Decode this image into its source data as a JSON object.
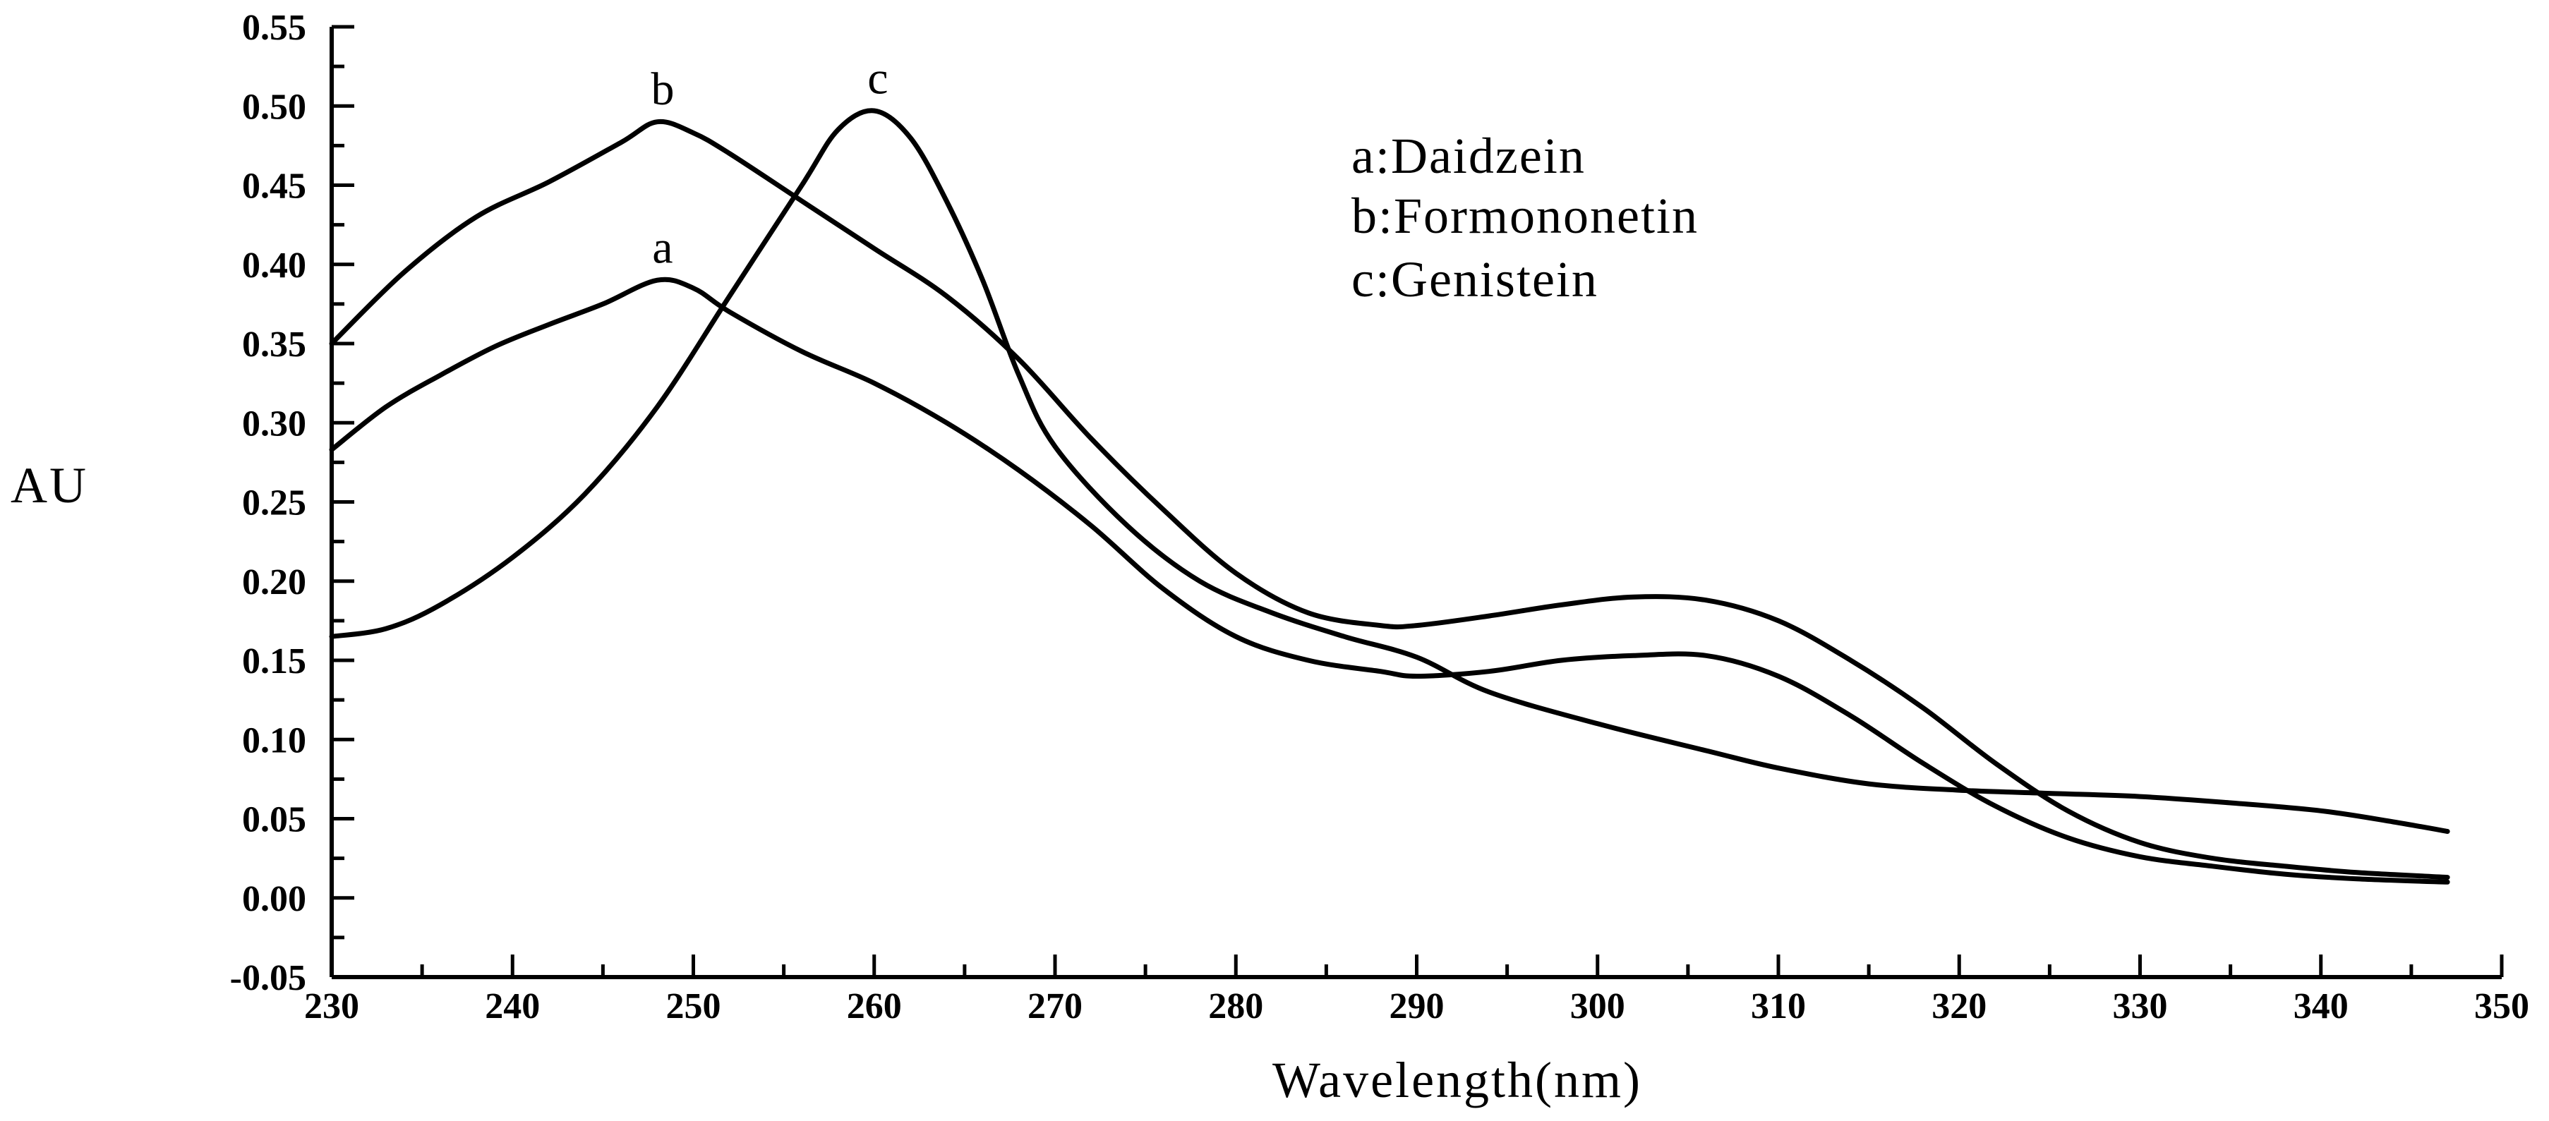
{
  "chart_data": {
    "type": "line",
    "title": "",
    "xlabel": "Wavelength(nm)",
    "ylabel": "AU",
    "xlim": [
      230,
      350
    ],
    "ylim": [
      -0.05,
      0.55
    ],
    "x_major_ticks": [
      230,
      240,
      250,
      260,
      270,
      280,
      290,
      300,
      310,
      320,
      330,
      340,
      350
    ],
    "x_tick_labels": [
      "230",
      "240",
      "250",
      "260",
      "270",
      "280",
      "290",
      "300",
      "310",
      "320",
      "330",
      "340",
      "350"
    ],
    "y_major_ticks": [
      -0.05,
      0.0,
      0.05,
      0.1,
      0.15,
      0.2,
      0.25,
      0.3,
      0.35,
      0.4,
      0.45,
      0.5,
      0.55
    ],
    "y_tick_labels": [
      "-0.05",
      "0.00",
      "0.05",
      "0.10",
      "0.15",
      "0.20",
      "0.25",
      "0.30",
      "0.35",
      "0.40",
      "0.45",
      "0.50",
      "0.55"
    ],
    "grid": false,
    "legend": {
      "placement": "top-right",
      "entries": [
        "a:Daidzein",
        "b:Formononetin",
        "c:Genistein"
      ]
    },
    "series": [
      {
        "label": "a",
        "x": [
          230,
          233,
          236,
          239,
          242,
          245,
          248,
          250,
          252,
          256,
          260,
          264,
          268,
          272,
          276,
          280,
          284,
          288,
          290,
          294,
          298,
          302,
          306,
          310,
          314,
          318,
          322,
          326,
          330,
          334,
          338,
          342,
          347
        ],
        "y": [
          0.283,
          0.31,
          0.33,
          0.348,
          0.362,
          0.375,
          0.39,
          0.385,
          0.37,
          0.345,
          0.325,
          0.3,
          0.27,
          0.235,
          0.195,
          0.165,
          0.15,
          0.143,
          0.14,
          0.143,
          0.15,
          0.153,
          0.153,
          0.14,
          0.115,
          0.085,
          0.058,
          0.038,
          0.026,
          0.02,
          0.015,
          0.012,
          0.01
        ]
      },
      {
        "label": "b",
        "x": [
          230,
          234,
          238,
          242,
          246,
          248,
          250,
          252,
          256,
          260,
          264,
          268,
          272,
          276,
          280,
          284,
          288,
          290,
          294,
          298,
          302,
          306,
          310,
          314,
          318,
          322,
          326,
          330,
          334,
          338,
          342,
          347
        ],
        "y": [
          0.35,
          0.395,
          0.43,
          0.452,
          0.477,
          0.49,
          0.483,
          0.47,
          0.44,
          0.41,
          0.38,
          0.34,
          0.29,
          0.245,
          0.205,
          0.18,
          0.172,
          0.172,
          0.178,
          0.185,
          0.19,
          0.188,
          0.175,
          0.15,
          0.12,
          0.085,
          0.055,
          0.035,
          0.025,
          0.02,
          0.016,
          0.013
        ]
      },
      {
        "label": "c",
        "x": [
          230,
          233,
          236,
          240,
          244,
          248,
          252,
          256,
          258,
          260,
          262,
          264,
          266,
          268,
          270,
          274,
          278,
          282,
          286,
          290,
          294,
          300,
          306,
          310,
          315,
          320,
          325,
          330,
          335,
          340,
          344,
          347
        ],
        "y": [
          0.165,
          0.17,
          0.185,
          0.215,
          0.255,
          0.31,
          0.38,
          0.45,
          0.485,
          0.497,
          0.48,
          0.44,
          0.39,
          0.33,
          0.285,
          0.235,
          0.2,
          0.18,
          0.165,
          0.152,
          0.13,
          0.11,
          0.093,
          0.082,
          0.072,
          0.068,
          0.066,
          0.064,
          0.06,
          0.055,
          0.048,
          0.042
        ]
      }
    ],
    "annotations": [
      {
        "text": "a",
        "x": 248.3,
        "y": 0.393
      },
      {
        "text": "b",
        "x": 248.3,
        "y": 0.493
      },
      {
        "text": "c",
        "x": 260.2,
        "y": 0.5
      }
    ]
  }
}
